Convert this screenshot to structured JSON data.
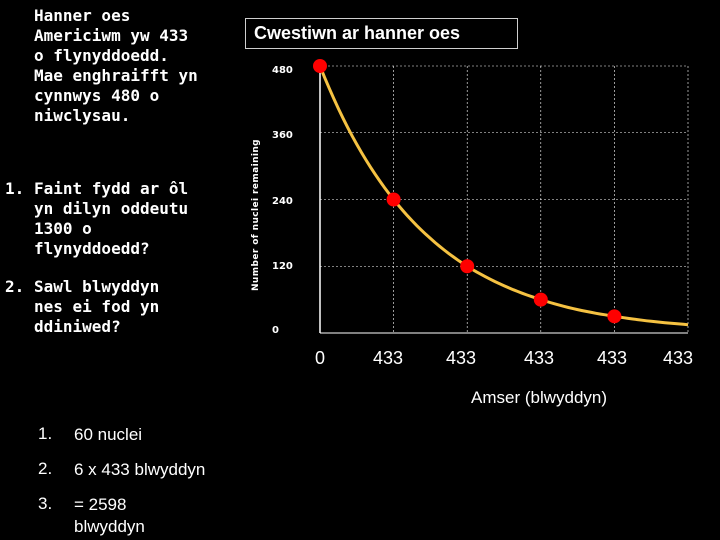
{
  "intro_text": "Hanner oes\nAmericiwm yw 433\no flynyddoedd.\nMae enghraifft yn\ncynnwys 480 o\nniwclysau.",
  "questions": [
    {
      "num": "1.",
      "text": "Faint fydd ar ôl\nyn dilyn oddeutu\n1300 o\nflynyddoedd?"
    },
    {
      "num": "2.",
      "text": "Sawl blwyddyn\nnes ei fod yn\nddiniwed?"
    }
  ],
  "answers": [
    {
      "num": "1.",
      "text": "60 nuclei"
    },
    {
      "num": "2.",
      "text": "6 x 433 blwyddyn"
    },
    {
      "num": "3.",
      "text": "= 2598\nblwyddyn"
    }
  ],
  "colors": {
    "background": "#000000",
    "curve": "#f5c242",
    "point": "#ff0000",
    "text": "#ffffff",
    "grid": "#ffffff"
  },
  "chart_data": {
    "type": "scatter",
    "title": "Cwestiwn ar hanner oes",
    "ylabel": "Number of nuclei remaining",
    "xlabel": "Amser (blwyddyn)",
    "x_tick_labels": [
      "0",
      "433",
      "433",
      "433",
      "433",
      "433"
    ],
    "y_ticks": [
      0,
      120,
      240,
      360,
      480
    ],
    "ylim": [
      0,
      480
    ],
    "xlim": [
      0,
      5
    ],
    "grid": true,
    "series": [
      {
        "x": [
          0,
          1,
          2,
          3,
          4
        ],
        "y": [
          480,
          240,
          120,
          60,
          30
        ]
      }
    ],
    "curve": {
      "x": [
        0,
        0.5,
        1,
        1.5,
        2,
        2.5,
        3,
        3.5,
        4,
        4.5,
        5
      ],
      "y": [
        480,
        339,
        240,
        170,
        120,
        85,
        60,
        42,
        30,
        21,
        15
      ]
    }
  }
}
